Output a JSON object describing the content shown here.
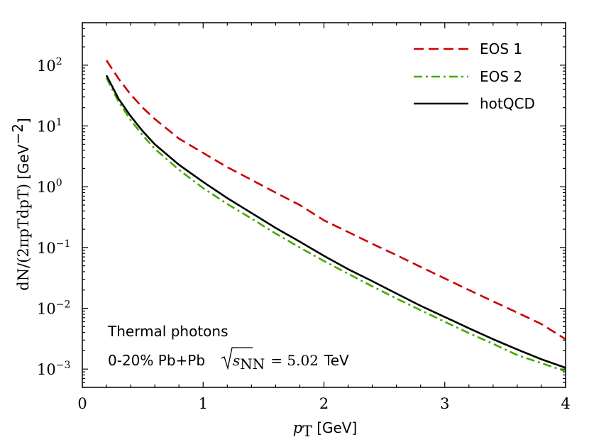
{
  "chart_data": {
    "type": "line",
    "x_axis": {
      "label_var": "p",
      "label_sub": "T",
      "label_unit": "[GeV]",
      "range": [
        0,
        4
      ],
      "ticks": [
        0,
        1,
        2,
        3,
        4
      ],
      "tick_labels": [
        "0",
        "1",
        "2",
        "3",
        "4"
      ]
    },
    "y_axis": {
      "scale": "log",
      "label_text": "dN/(2πpTdpT)",
      "label_unit": "[GeV",
      "label_unit_exp": "−2",
      "label_unit_close": "]",
      "range": [
        0.0005,
        500
      ],
      "ticks": [
        {
          "base": "10",
          "exp": "2",
          "value": 100
        },
        {
          "base": "10",
          "exp": "1",
          "value": 10
        },
        {
          "base": "10",
          "exp": "0",
          "value": 1
        },
        {
          "base": "10",
          "exp": "−1",
          "value": 0.1
        },
        {
          "base": "10",
          "exp": "−2",
          "value": 0.01
        },
        {
          "base": "10",
          "exp": "−3",
          "value": 0.001
        }
      ]
    },
    "series": [
      {
        "name": "EOS 1",
        "color": "#cc0000",
        "style": "dashed",
        "x": [
          0.2,
          0.3,
          0.4,
          0.5,
          0.6,
          0.8,
          1.0,
          1.2,
          1.4,
          1.6,
          1.8,
          2.0,
          2.2,
          2.4,
          2.6,
          2.8,
          3.0,
          3.2,
          3.4,
          3.6,
          3.8,
          4.0
        ],
        "y": [
          120,
          60,
          33,
          20,
          13,
          6.2,
          3.6,
          2.1,
          1.3,
          0.8,
          0.5,
          0.28,
          0.18,
          0.115,
          0.075,
          0.048,
          0.031,
          0.02,
          0.013,
          0.0085,
          0.0055,
          0.0031
        ]
      },
      {
        "name": "EOS 2",
        "color": "#44aa00",
        "style": "dashdot",
        "x": [
          0.2,
          0.3,
          0.4,
          0.5,
          0.6,
          0.8,
          1.0,
          1.2,
          1.4,
          1.6,
          1.8,
          2.0,
          2.2,
          2.4,
          2.6,
          2.8,
          3.0,
          3.2,
          3.4,
          3.6,
          3.8,
          4.0
        ],
        "y": [
          62,
          25,
          12.5,
          7.0,
          4.2,
          1.9,
          0.95,
          0.52,
          0.3,
          0.17,
          0.1,
          0.06,
          0.037,
          0.023,
          0.0145,
          0.0093,
          0.006,
          0.0039,
          0.0026,
          0.0017,
          0.00125,
          0.00092
        ]
      },
      {
        "name": "hotQCD",
        "color": "#000000",
        "style": "solid",
        "x": [
          0.2,
          0.3,
          0.4,
          0.5,
          0.6,
          0.8,
          1.0,
          1.2,
          1.4,
          1.6,
          1.8,
          2.0,
          2.2,
          2.4,
          2.6,
          2.8,
          3.0,
          3.2,
          3.4,
          3.6,
          3.8,
          4.0
        ],
        "y": [
          68,
          28,
          14.5,
          8.2,
          5.0,
          2.3,
          1.2,
          0.65,
          0.37,
          0.21,
          0.125,
          0.073,
          0.044,
          0.028,
          0.0175,
          0.011,
          0.0072,
          0.0047,
          0.0031,
          0.0021,
          0.00145,
          0.00105
        ]
      }
    ],
    "legend": {
      "position": "top-right",
      "entries": [
        "EOS 1",
        "EOS 2",
        "hotQCD"
      ]
    },
    "annotations": {
      "line1": "Thermal photons",
      "line2_prefix": "0-20% Pb+Pb",
      "line2_math_var": "s",
      "line2_math_sub": "NN",
      "line2_math_eq": "= 5.02",
      "line2_unit": "TeV"
    },
    "grid": false
  }
}
